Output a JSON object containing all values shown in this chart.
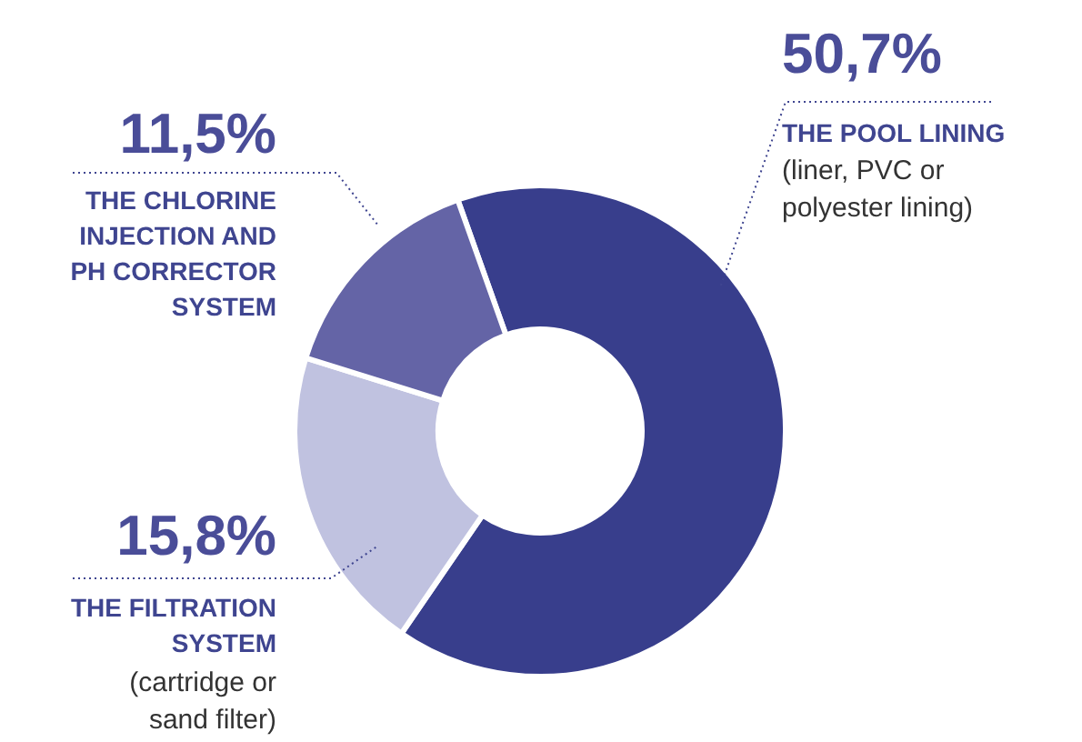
{
  "chart_data": {
    "type": "donut",
    "categories": [
      "THE POOL LINING",
      "THE FILTRATION SYSTEM",
      "THE CHLORINE INJECTION AND PH CORRECTOR SYSTEM"
    ],
    "values": [
      50.7,
      15.8,
      11.5
    ],
    "value_labels": [
      "50,7%",
      "15,8%",
      "11,5%"
    ],
    "colors": [
      "#383e8c",
      "#c0c2e0",
      "#6464a6"
    ],
    "annotations": [
      {
        "text": "(liner, PVC or polyester lining)",
        "x": "THE POOL LINING"
      },
      {
        "text": "(cartridge or sand filter)",
        "x": "THE FILTRATION SYSTEM"
      }
    ],
    "legend": false
  }
}
